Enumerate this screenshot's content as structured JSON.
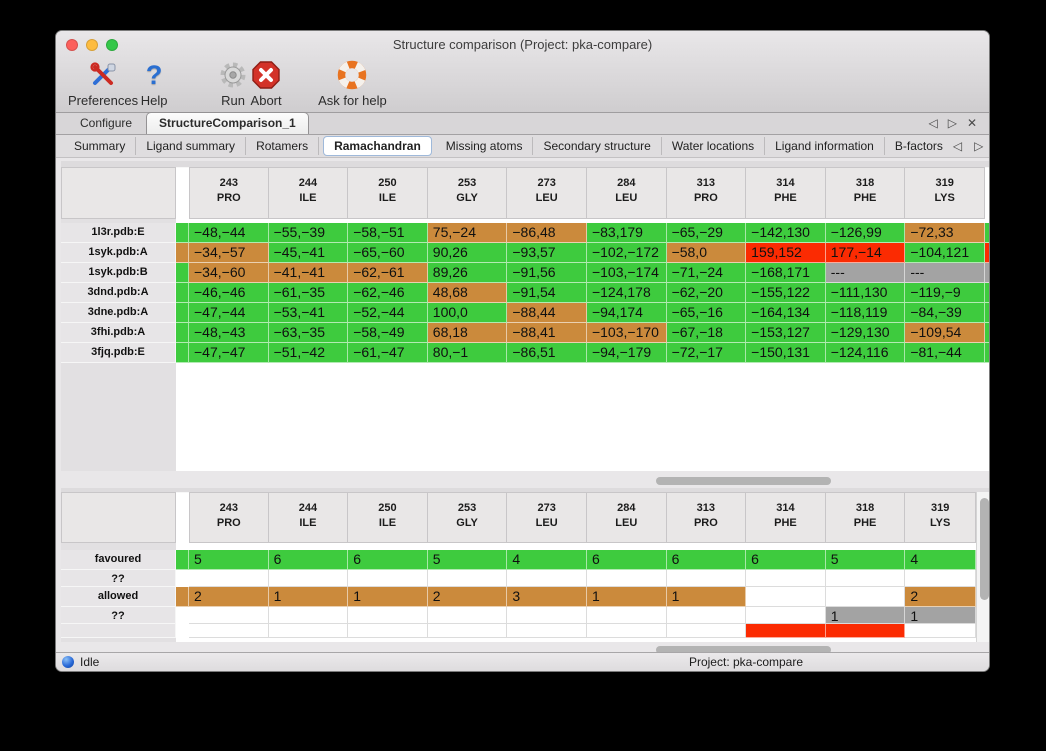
{
  "window": {
    "title": "Structure comparison (Project: pka-compare)"
  },
  "nav_icons": {
    "prev": "◁",
    "next": "▷",
    "close": "✕"
  },
  "toolbar": {
    "buttons": [
      {
        "label": "Preferences",
        "icon": "preferences-tools-icon"
      },
      {
        "label": "Help",
        "icon": "help-question-icon"
      },
      {
        "label": "Run",
        "icon": "run-gear-icon"
      },
      {
        "label": "Abort",
        "icon": "abort-stop-icon"
      },
      {
        "label": "Ask for help",
        "icon": "lifering-icon"
      }
    ]
  },
  "tab_bar": {
    "tabs": [
      {
        "label": "Configure",
        "active": false
      },
      {
        "label": "StructureComparison_1",
        "active": true
      }
    ]
  },
  "subtab_bar": {
    "tabs": [
      "Summary",
      "Ligand summary",
      "Rotamers",
      "Ramachandran",
      "Missing atoms",
      "Secondary structure",
      "Water locations",
      "Ligand information",
      "B-factors"
    ],
    "active": "Ramachandran"
  },
  "colors": {
    "favoured": "#3ecb3e",
    "allowed": "#cb8a3c",
    "outlier": "#fb2b02",
    "missing": "#a3a3a3"
  },
  "columns": [
    {
      "num": "243",
      "res": "PRO"
    },
    {
      "num": "244",
      "res": "ILE"
    },
    {
      "num": "250",
      "res": "ILE"
    },
    {
      "num": "253",
      "res": "GLY"
    },
    {
      "num": "273",
      "res": "LEU"
    },
    {
      "num": "284",
      "res": "LEU"
    },
    {
      "num": "313",
      "res": "PRO"
    },
    {
      "num": "314",
      "res": "PHE"
    },
    {
      "num": "318",
      "res": "PHE"
    },
    {
      "num": "319",
      "res": "LYS"
    }
  ],
  "detail_table": {
    "rows": [
      {
        "label": "1l3r.pdb:E",
        "lead": "favoured",
        "tail": "favoured",
        "cells": [
          [
            "−48,−44",
            "favoured"
          ],
          [
            "−55,−39",
            "favoured"
          ],
          [
            "−58,−51",
            "favoured"
          ],
          [
            "75,−24",
            "allowed"
          ],
          [
            "−86,48",
            "allowed"
          ],
          [
            "−83,179",
            "favoured"
          ],
          [
            "−65,−29",
            "favoured"
          ],
          [
            "−142,130",
            "favoured"
          ],
          [
            "−126,99",
            "favoured"
          ],
          [
            "−72,33",
            "allowed"
          ]
        ]
      },
      {
        "label": "1syk.pdb:A",
        "lead": "allowed",
        "tail": "outlier",
        "cells": [
          [
            "−34,−57",
            "allowed"
          ],
          [
            "−45,−41",
            "favoured"
          ],
          [
            "−65,−60",
            "favoured"
          ],
          [
            "90,26",
            "favoured"
          ],
          [
            "−93,57",
            "favoured"
          ],
          [
            "−102,−172",
            "favoured"
          ],
          [
            "−58,0",
            "allowed"
          ],
          [
            "159,152",
            "outlier"
          ],
          [
            "177,−14",
            "outlier"
          ],
          [
            "−104,121",
            "favoured"
          ]
        ]
      },
      {
        "label": "1syk.pdb:B",
        "lead": "favoured",
        "tail": "missing",
        "cells": [
          [
            "−34,−60",
            "allowed"
          ],
          [
            "−41,−41",
            "allowed"
          ],
          [
            "−62,−61",
            "allowed"
          ],
          [
            "89,26",
            "favoured"
          ],
          [
            "−91,56",
            "favoured"
          ],
          [
            "−103,−174",
            "favoured"
          ],
          [
            "−71,−24",
            "favoured"
          ],
          [
            "−168,171",
            "favoured"
          ],
          [
            "---",
            "missing"
          ],
          [
            "---",
            "missing"
          ]
        ]
      },
      {
        "label": "3dnd.pdb:A",
        "lead": "favoured",
        "tail": "favoured",
        "cells": [
          [
            "−46,−46",
            "favoured"
          ],
          [
            "−61,−35",
            "favoured"
          ],
          [
            "−62,−46",
            "favoured"
          ],
          [
            "48,68",
            "allowed"
          ],
          [
            "−91,54",
            "favoured"
          ],
          [
            "−124,178",
            "favoured"
          ],
          [
            "−62,−20",
            "favoured"
          ],
          [
            "−155,122",
            "favoured"
          ],
          [
            "−111,130",
            "favoured"
          ],
          [
            "−119,−9",
            "favoured"
          ]
        ]
      },
      {
        "label": "3dne.pdb:A",
        "lead": "favoured",
        "tail": "favoured",
        "cells": [
          [
            "−47,−44",
            "favoured"
          ],
          [
            "−53,−41",
            "favoured"
          ],
          [
            "−52,−44",
            "favoured"
          ],
          [
            "100,0",
            "favoured"
          ],
          [
            "−88,44",
            "allowed"
          ],
          [
            "−94,174",
            "favoured"
          ],
          [
            "−65,−16",
            "favoured"
          ],
          [
            "−164,134",
            "favoured"
          ],
          [
            "−118,119",
            "favoured"
          ],
          [
            "−84,−39",
            "favoured"
          ]
        ]
      },
      {
        "label": "3fhi.pdb:A",
        "lead": "favoured",
        "tail": "favoured",
        "cells": [
          [
            "−48,−43",
            "favoured"
          ],
          [
            "−63,−35",
            "favoured"
          ],
          [
            "−58,−49",
            "favoured"
          ],
          [
            "68,18",
            "allowed"
          ],
          [
            "−88,41",
            "allowed"
          ],
          [
            "−103,−170",
            "allowed"
          ],
          [
            "−67,−18",
            "favoured"
          ],
          [
            "−153,127",
            "favoured"
          ],
          [
            "−129,130",
            "favoured"
          ],
          [
            "−109,54",
            "allowed"
          ]
        ]
      },
      {
        "label": "3fjq.pdb:E",
        "lead": "favoured",
        "tail": "favoured",
        "cells": [
          [
            "−47,−47",
            "favoured"
          ],
          [
            "−51,−42",
            "favoured"
          ],
          [
            "−61,−47",
            "favoured"
          ],
          [
            "80,−1",
            "favoured"
          ],
          [
            "−86,51",
            "favoured"
          ],
          [
            "−94,−179",
            "favoured"
          ],
          [
            "−72,−17",
            "favoured"
          ],
          [
            "−150,131",
            "favoured"
          ],
          [
            "−124,116",
            "favoured"
          ],
          [
            "−81,−44",
            "favoured"
          ]
        ]
      }
    ]
  },
  "summary_table": {
    "rows": [
      {
        "label": "favoured",
        "kind": "count",
        "lead": "favoured",
        "cells": [
          [
            "5",
            "favoured"
          ],
          [
            "6",
            "favoured"
          ],
          [
            "6",
            "favoured"
          ],
          [
            "5",
            "favoured"
          ],
          [
            "4",
            "favoured"
          ],
          [
            "6",
            "favoured"
          ],
          [
            "6",
            "favoured"
          ],
          [
            "6",
            "favoured"
          ],
          [
            "5",
            "favoured"
          ],
          [
            "4",
            "favoured"
          ]
        ]
      },
      {
        "label": "??",
        "kind": "spacer",
        "lead": "",
        "cells": [
          [
            "",
            ""
          ],
          [
            "",
            ""
          ],
          [
            "",
            ""
          ],
          [
            "",
            ""
          ],
          [
            "",
            ""
          ],
          [
            "",
            ""
          ],
          [
            "",
            ""
          ],
          [
            "",
            ""
          ],
          [
            "",
            ""
          ],
          [
            "",
            ""
          ]
        ]
      },
      {
        "label": "allowed",
        "kind": "count",
        "lead": "allowed",
        "cells": [
          [
            "2",
            "allowed"
          ],
          [
            "1",
            "allowed"
          ],
          [
            "1",
            "allowed"
          ],
          [
            "2",
            "allowed"
          ],
          [
            "3",
            "allowed"
          ],
          [
            "1",
            "allowed"
          ],
          [
            "1",
            "allowed"
          ],
          [
            "",
            ""
          ],
          [
            "",
            ""
          ],
          [
            "2",
            "allowed"
          ]
        ]
      },
      {
        "label": "??",
        "kind": "spacer",
        "lead": "",
        "cells": [
          [
            "",
            ""
          ],
          [
            "",
            ""
          ],
          [
            "",
            ""
          ],
          [
            "",
            ""
          ],
          [
            "",
            ""
          ],
          [
            "",
            ""
          ],
          [
            "",
            ""
          ],
          [
            "",
            ""
          ],
          [
            "1",
            "missing"
          ],
          [
            "1",
            "missing"
          ]
        ]
      },
      {
        "label": "",
        "kind": "partial",
        "lead": "",
        "cells": [
          [
            "",
            ""
          ],
          [
            "",
            ""
          ],
          [
            "",
            ""
          ],
          [
            "",
            ""
          ],
          [
            "",
            ""
          ],
          [
            "",
            ""
          ],
          [
            "",
            ""
          ],
          [
            "",
            "outlier"
          ],
          [
            "",
            "outlier"
          ],
          [
            "",
            ""
          ]
        ]
      }
    ]
  },
  "status_bar": {
    "left": "Idle",
    "right": "Project: pka-compare"
  }
}
